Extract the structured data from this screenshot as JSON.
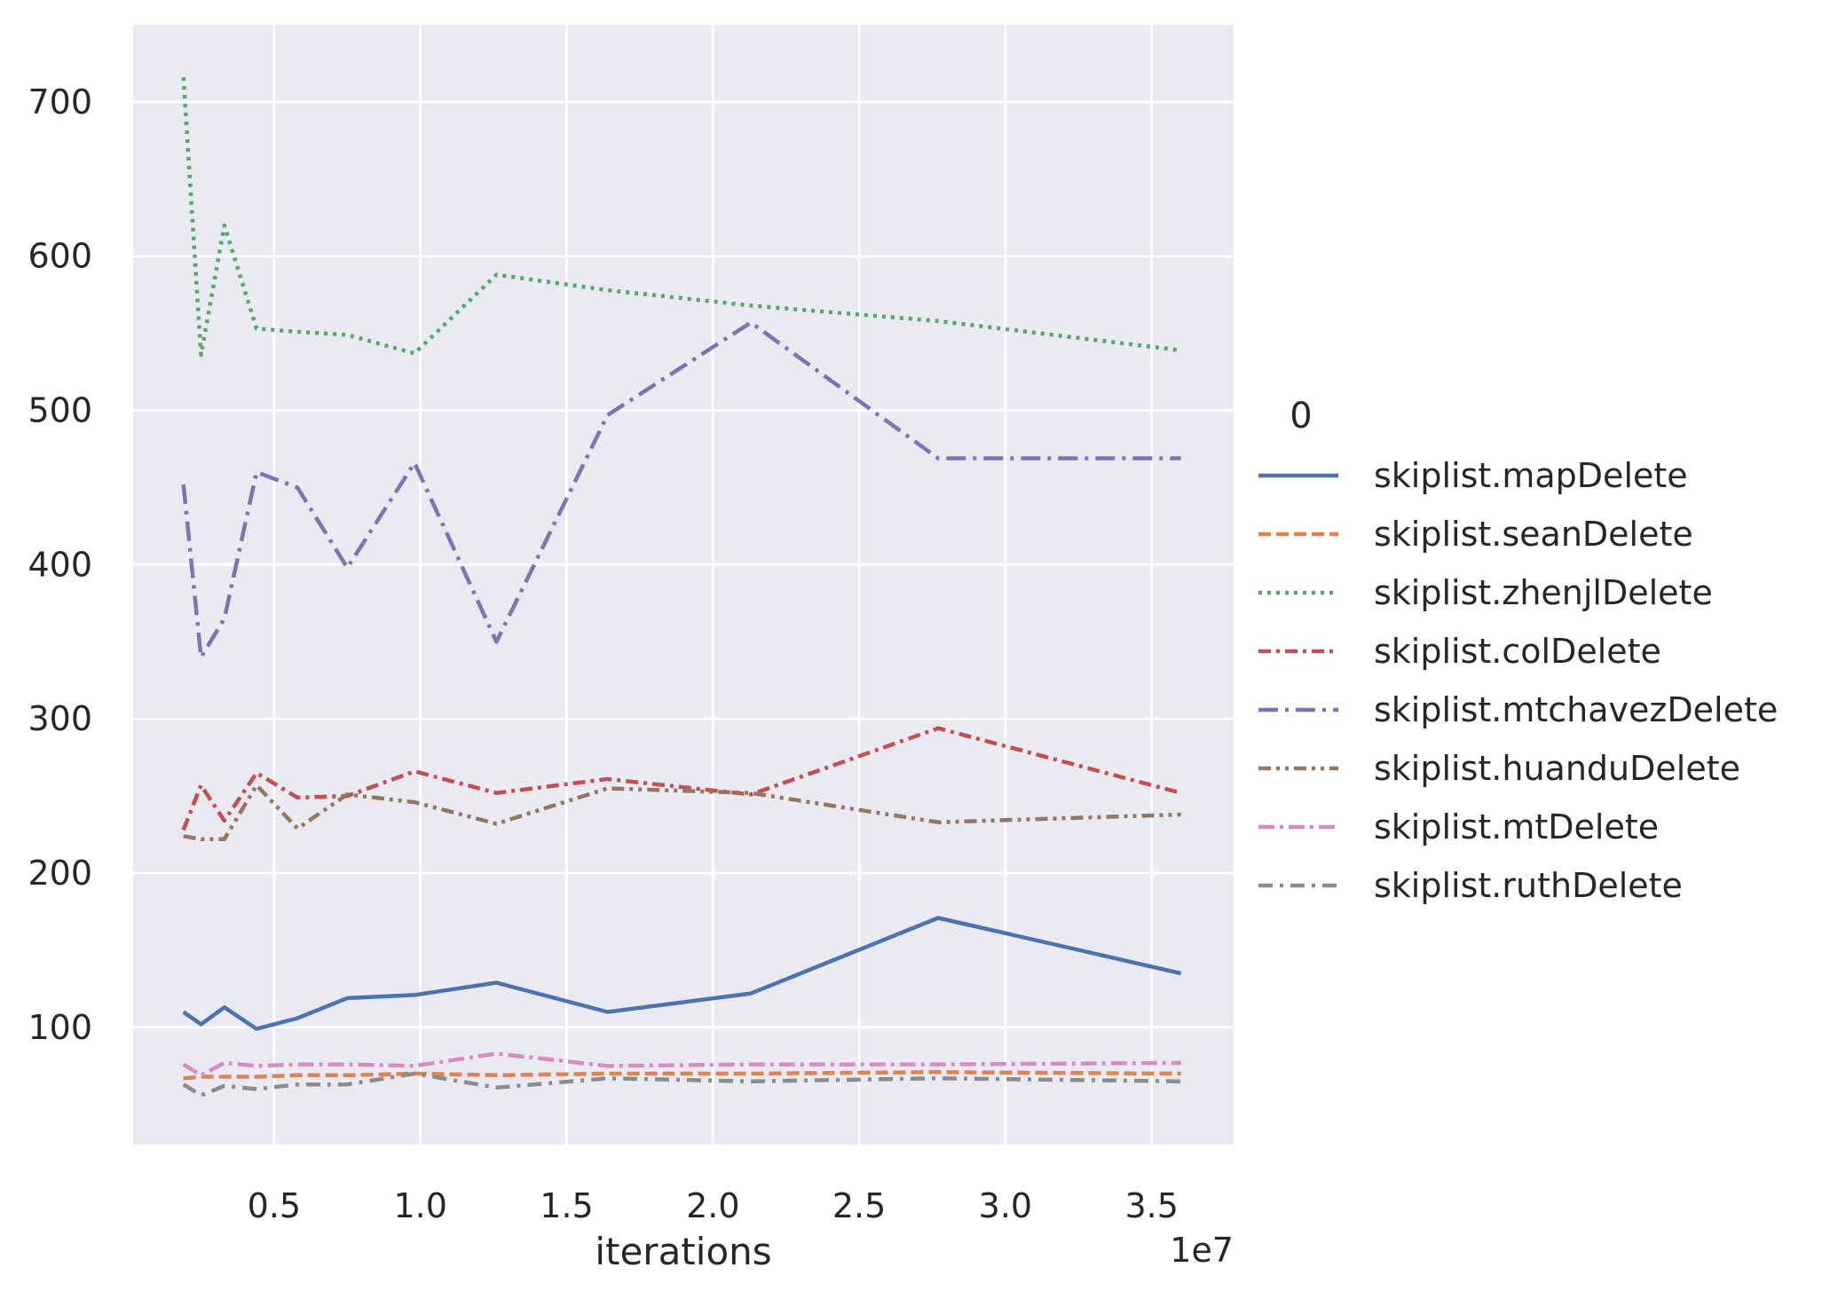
{
  "chart_data": {
    "type": "line",
    "title": "",
    "xlabel": "iterations",
    "ylabel": "",
    "x_offset_label": "1e7",
    "x_scale_factor": 10000000,
    "xlim": [
      180000,
      37800000
    ],
    "ylim": [
      24,
      750
    ],
    "grid": true,
    "legend_title": "0",
    "legend_position": "right",
    "xticks": [
      5000000,
      10000000,
      15000000,
      20000000,
      25000000,
      30000000,
      35000000
    ],
    "xtick_labels": [
      "0.5",
      "1.0",
      "1.5",
      "2.0",
      "2.5",
      "3.0",
      "3.5"
    ],
    "yticks": [
      100,
      200,
      300,
      400,
      500,
      600,
      700
    ],
    "ytick_labels": [
      "100",
      "200",
      "300",
      "400",
      "500",
      "600",
      "700"
    ],
    "x": [
      1900000,
      2500000,
      3300000,
      4400000,
      5800000,
      7500000,
      9800000,
      12600000,
      16400000,
      21300000,
      27700000,
      36000000
    ],
    "series": [
      {
        "name": "skiplist.mapDelete",
        "color": "#4c72b0",
        "dash": "solid",
        "values": [
          110,
          102,
          113,
          99,
          106,
          119,
          121,
          129,
          110,
          122,
          171,
          135
        ]
      },
      {
        "name": "skiplist.seanDelete",
        "color": "#dd8452",
        "dash": "dashed",
        "values": [
          67,
          68,
          68,
          68,
          69,
          69,
          70,
          69,
          70,
          70,
          71,
          70
        ]
      },
      {
        "name": "skiplist.zhenjlDelete",
        "color": "#55a868",
        "dash": "dotted",
        "values": [
          716,
          536,
          620,
          553,
          551,
          549,
          537,
          588,
          578,
          568,
          558,
          539
        ]
      },
      {
        "name": "skiplist.colDelete",
        "color": "#c44e52",
        "dash": "dashdot",
        "values": [
          228,
          257,
          234,
          265,
          249,
          250,
          266,
          252,
          261,
          251,
          294,
          252
        ]
      },
      {
        "name": "skiplist.mtchavezDelete",
        "color": "#8172b3",
        "dash": "dashdot-long",
        "values": [
          452,
          340,
          365,
          460,
          450,
          398,
          466,
          350,
          497,
          557,
          469,
          469
        ]
      },
      {
        "name": "skiplist.huanduDelete",
        "color": "#937860",
        "dash": "dashdotdot",
        "values": [
          224,
          222,
          222,
          257,
          229,
          251,
          246,
          232,
          255,
          252,
          233,
          238
        ]
      },
      {
        "name": "skiplist.mtDelete",
        "color": "#da8bc3",
        "dash": "dashdot-pink",
        "values": [
          76,
          69,
          77,
          75,
          76,
          76,
          75,
          83,
          75,
          76,
          76,
          77
        ]
      },
      {
        "name": "skiplist.ruthDelete",
        "color": "#8c8c8c",
        "dash": "dashdot-grey",
        "values": [
          63,
          56,
          62,
          60,
          63,
          63,
          70,
          61,
          67,
          65,
          67,
          65
        ]
      }
    ]
  }
}
